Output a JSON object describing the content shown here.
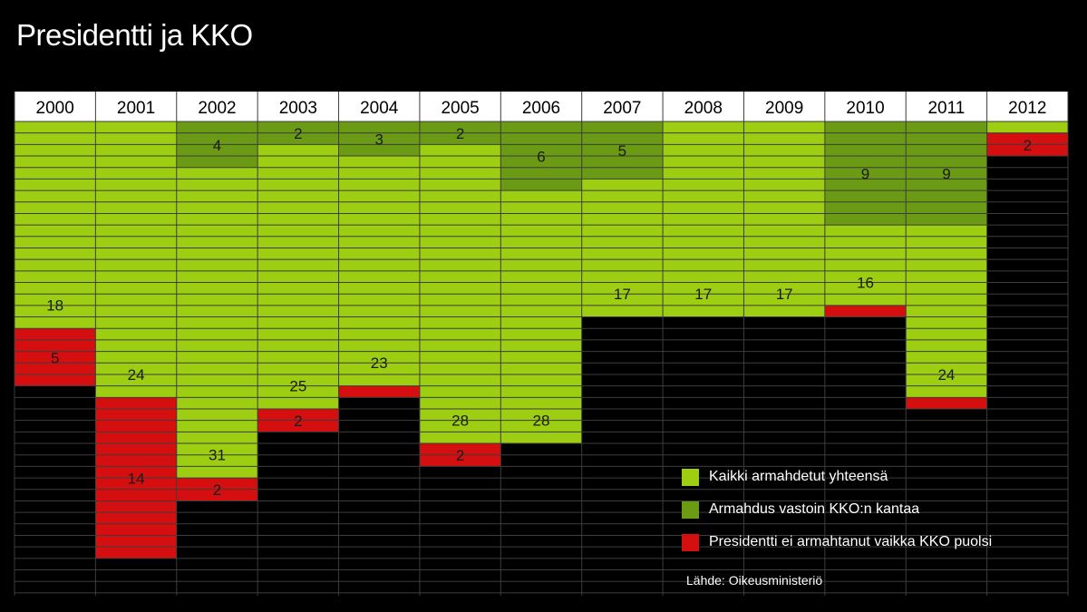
{
  "title": "Presidentti ja KKO",
  "source": "Lähde: Oikeusministeriö",
  "colors": {
    "total": "#9dce12",
    "against": "#6b9a14",
    "refused": "#d50f10",
    "background": "#000000",
    "gridline": "#3d3d3d"
  },
  "legend": [
    {
      "label": "Kaikki armahdetut yhteensä",
      "color": "#9dce12"
    },
    {
      "label": "Armahdus vastoin KKO:n kantaa",
      "color": "#6b9a14"
    },
    {
      "label": "Presidentti ei armahtanut vaikka KKO puolsi",
      "color": "#d50f10"
    }
  ],
  "chart_data": {
    "type": "bar",
    "title": "Presidentti ja KKO",
    "categories": [
      "2000",
      "2001",
      "2002",
      "2003",
      "2004",
      "2005",
      "2006",
      "2007",
      "2008",
      "2009",
      "2010",
      "2011",
      "2012"
    ],
    "series": [
      {
        "name": "Kaikki armahdetut yhteensä",
        "values": [
          18,
          24,
          31,
          25,
          23,
          28,
          28,
          17,
          17,
          17,
          16,
          24,
          1
        ]
      },
      {
        "name": "Armahdus vastoin KKO:n kantaa",
        "values": [
          0,
          0,
          4,
          2,
          3,
          2,
          6,
          5,
          0,
          0,
          9,
          9,
          0
        ]
      },
      {
        "name": "Presidentti ei armahtanut vaikka KKO puolsi",
        "values": [
          5,
          14,
          2,
          2,
          1,
          2,
          0,
          0,
          0,
          0,
          1,
          1,
          2
        ]
      }
    ],
    "labels": {
      "total": [
        "18",
        "24",
        "31",
        "25",
        "23",
        "28",
        "28",
        "17",
        "17",
        "17",
        "16",
        "24",
        ""
      ],
      "against": [
        "",
        "",
        "4",
        "2",
        "3",
        "2",
        "6",
        "5",
        "",
        "",
        "9",
        "9",
        ""
      ],
      "refused": [
        "5",
        "14",
        "2",
        "2",
        "",
        "2",
        "",
        "",
        "",
        "",
        "",
        "",
        "2"
      ]
    },
    "ylim": [
      0,
      41
    ],
    "grid": true,
    "legend_position": "bottom-right"
  }
}
